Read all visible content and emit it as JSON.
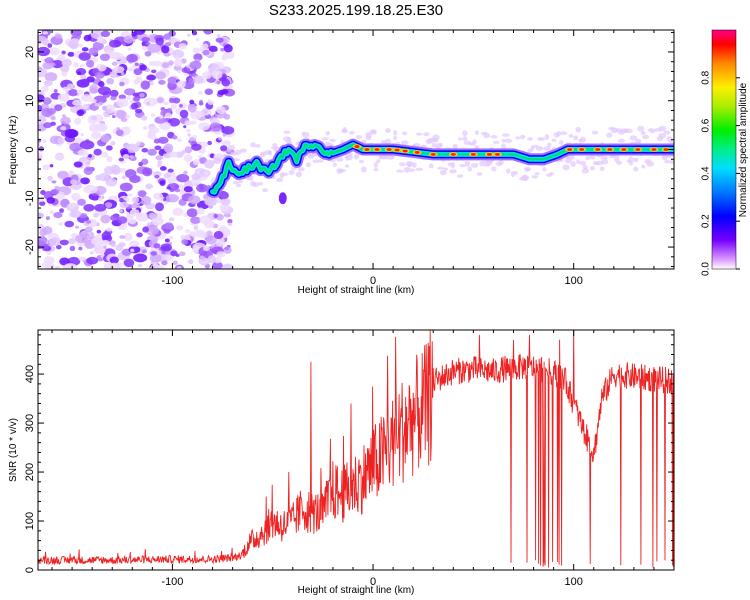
{
  "title": "S233.2025.199.18.25.E30",
  "colors": {
    "line": "#ee2222",
    "colormap": [
      "#ffffff",
      "#b060ff",
      "#5500ff",
      "#0000ff",
      "#0099ff",
      "#00eedd",
      "#00ee00",
      "#aaee00",
      "#ffee00",
      "#ff8800",
      "#ff0000",
      "#ff0088"
    ]
  },
  "chart_data": [
    {
      "type": "heatmap",
      "xlabel": "Height of straight line (km)",
      "ylabel": "Frequency (Hz)",
      "xlim": [
        -167,
        150
      ],
      "ylim": [
        -24.5,
        24.5
      ],
      "xticks": [
        -100,
        0,
        100
      ],
      "yticks": [
        -20,
        -10,
        0,
        10,
        20
      ],
      "colorbar": {
        "label": "Normalized spectral amplitude",
        "range": [
          0,
          1
        ],
        "ticks": [
          "0.0",
          "0.2",
          "0.4",
          "0.6",
          "0.8"
        ]
      },
      "noise_region_x": [
        -167,
        -73
      ],
      "ridge": [
        {
          "x": -80,
          "y": -9
        },
        {
          "x": -75,
          "y": -6
        },
        {
          "x": -72,
          "y": -3
        },
        {
          "x": -68,
          "y": -5
        },
        {
          "x": -63,
          "y": -4
        },
        {
          "x": -58,
          "y": -3
        },
        {
          "x": -52,
          "y": -5
        },
        {
          "x": -47,
          "y": -2
        },
        {
          "x": -42,
          "y": 0
        },
        {
          "x": -38,
          "y": -2
        },
        {
          "x": -33,
          "y": 1
        },
        {
          "x": -28,
          "y": 1
        },
        {
          "x": -22,
          "y": -1
        },
        {
          "x": -15,
          "y": 0
        },
        {
          "x": -10,
          "y": 1
        },
        {
          "x": -5,
          "y": 0
        },
        {
          "x": 0,
          "y": 0
        },
        {
          "x": 10,
          "y": 0
        },
        {
          "x": 20,
          "y": -0.5
        },
        {
          "x": 30,
          "y": -1
        },
        {
          "x": 45,
          "y": -1
        },
        {
          "x": 60,
          "y": -1
        },
        {
          "x": 65,
          "y": -1
        },
        {
          "x": 70,
          "y": -1
        },
        {
          "x": 78,
          "y": -2
        },
        {
          "x": 85,
          "y": -2
        },
        {
          "x": 92,
          "y": -1
        },
        {
          "x": 97,
          "y": 0
        },
        {
          "x": 105,
          "y": 0
        },
        {
          "x": 120,
          "y": 0
        },
        {
          "x": 135,
          "y": 0
        },
        {
          "x": 150,
          "y": 0
        }
      ]
    },
    {
      "type": "line",
      "xlabel": "Height of straight line (km)",
      "ylabel": "SNR (10 * v/v)",
      "xlim": [
        -167,
        150
      ],
      "ylim": [
        0,
        490
      ],
      "xticks": [
        -100,
        0,
        100
      ],
      "yticks": [
        0,
        100,
        200,
        300,
        400
      ],
      "series": [
        {
          "envelope": [
            {
              "x": -167,
              "y": 20
            },
            {
              "x": -130,
              "y": 20
            },
            {
              "x": -100,
              "y": 22
            },
            {
              "x": -80,
              "y": 22
            },
            {
              "x": -70,
              "y": 25
            },
            {
              "x": -66,
              "y": 30
            },
            {
              "x": -62,
              "y": 60
            },
            {
              "x": -55,
              "y": 85
            },
            {
              "x": -50,
              "y": 110
            },
            {
              "x": -45,
              "y": 100
            },
            {
              "x": -40,
              "y": 110
            },
            {
              "x": -35,
              "y": 140
            },
            {
              "x": -30,
              "y": 130
            },
            {
              "x": -25,
              "y": 130
            },
            {
              "x": -20,
              "y": 180
            },
            {
              "x": -15,
              "y": 170
            },
            {
              "x": -10,
              "y": 190
            },
            {
              "x": -5,
              "y": 210
            },
            {
              "x": 0,
              "y": 235
            },
            {
              "x": 5,
              "y": 260
            },
            {
              "x": 10,
              "y": 290
            },
            {
              "x": 15,
              "y": 320
            },
            {
              "x": 20,
              "y": 345
            },
            {
              "x": 25,
              "y": 365
            },
            {
              "x": 30,
              "y": 385
            },
            {
              "x": 40,
              "y": 405
            },
            {
              "x": 50,
              "y": 410
            },
            {
              "x": 60,
              "y": 405
            },
            {
              "x": 65,
              "y": 410
            },
            {
              "x": 75,
              "y": 415
            },
            {
              "x": 85,
              "y": 410
            },
            {
              "x": 95,
              "y": 395
            },
            {
              "x": 100,
              "y": 340
            },
            {
              "x": 105,
              "y": 285
            },
            {
              "x": 110,
              "y": 235
            },
            {
              "x": 114,
              "y": 350
            },
            {
              "x": 120,
              "y": 400
            },
            {
              "x": 130,
              "y": 395
            },
            {
              "x": 140,
              "y": 390
            },
            {
              "x": 150,
              "y": 385
            }
          ],
          "spikes": [
            {
              "x": -42,
              "y": 200
            },
            {
              "x": -31,
              "y": 425
            },
            {
              "x": -11,
              "y": 340
            },
            {
              "x": 53,
              "y": 480
            },
            {
              "x": 70,
              "y": 470
            },
            {
              "x": 78,
              "y": 480
            },
            {
              "x": 93,
              "y": 470
            },
            {
              "x": 100,
              "y": 490
            }
          ],
          "dropouts": [
            {
              "from": 66,
              "to": 97,
              "min": 5
            },
            {
              "from": 108,
              "to": 150,
              "min": 5
            }
          ]
        }
      ]
    }
  ]
}
